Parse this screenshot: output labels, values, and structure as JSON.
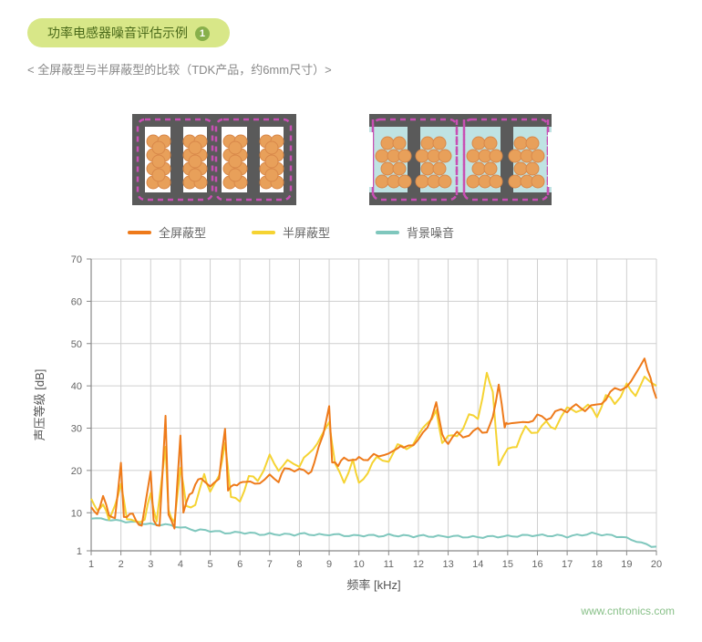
{
  "header": {
    "title_text": "功率电感器噪音评估示例",
    "badge_number": "1",
    "subtitle": "< 全屏蔽型与半屏蔽型的比较（TDK产品，约6mm尺寸）>",
    "title_bg": "#d8e788",
    "title_color": "#4a6a1a",
    "badge_bg": "#88b04b"
  },
  "diagrams": {
    "core_color": "#5a5a5a",
    "outline_color": "#c84fb4",
    "coil_color": "#e8a05a",
    "coil_stroke": "#d8884a",
    "fill_half": "#bfe3e3"
  },
  "legend": {
    "items": [
      {
        "label": "全屏蔽型",
        "color": "#ee7a1a"
      },
      {
        "label": "半屏蔽型",
        "color": "#f5d332"
      },
      {
        "label": "背景噪音",
        "color": "#7fc7bd"
      }
    ]
  },
  "chart": {
    "type": "line",
    "xlabel": "频率 [kHz]",
    "ylabel": "声压等级 [dB]",
    "label_fontsize": 13,
    "tick_fontsize": 11,
    "xlim": [
      1,
      20
    ],
    "ylim": [
      1,
      70
    ],
    "xticks": [
      1,
      2,
      3,
      4,
      5,
      6,
      7,
      8,
      9,
      10,
      11,
      12,
      13,
      14,
      15,
      16,
      17,
      18,
      19,
      20
    ],
    "yticks": [
      1,
      10,
      20,
      30,
      40,
      50,
      60,
      70
    ],
    "grid_color": "#cfcfcf",
    "axis_color": "#888888",
    "background": "#ffffff",
    "line_width": 2,
    "noise_amplitude": 0.8,
    "series_full": {
      "color": "#ee7a1a",
      "points": [
        [
          1,
          12
        ],
        [
          1.2,
          9
        ],
        [
          1.4,
          14
        ],
        [
          1.6,
          10
        ],
        [
          1.8,
          8
        ],
        [
          2,
          22
        ],
        [
          2.1,
          9
        ],
        [
          2.3,
          10
        ],
        [
          2.5,
          8
        ],
        [
          2.7,
          7
        ],
        [
          3,
          19
        ],
        [
          3.1,
          8
        ],
        [
          3.3,
          7
        ],
        [
          3.5,
          33
        ],
        [
          3.6,
          9
        ],
        [
          3.8,
          7
        ],
        [
          4,
          28
        ],
        [
          4.1,
          10
        ],
        [
          4.3,
          14
        ],
        [
          4.5,
          17
        ],
        [
          4.7,
          18
        ],
        [
          5,
          17
        ],
        [
          5.3,
          18
        ],
        [
          5.5,
          30
        ],
        [
          5.6,
          16
        ],
        [
          5.8,
          16
        ],
        [
          6,
          17
        ],
        [
          6.2,
          18
        ],
        [
          6.5,
          17
        ],
        [
          7,
          19
        ],
        [
          7.3,
          18
        ],
        [
          7.5,
          20
        ],
        [
          8,
          20
        ],
        [
          8.3,
          19
        ],
        [
          8.5,
          22
        ],
        [
          8.8,
          28
        ],
        [
          9,
          36
        ],
        [
          9.1,
          22
        ],
        [
          9.3,
          21
        ],
        [
          9.5,
          23
        ],
        [
          9.8,
          22
        ],
        [
          10,
          23
        ],
        [
          10.3,
          22
        ],
        [
          10.5,
          24
        ],
        [
          11,
          24
        ],
        [
          11.3,
          26
        ],
        [
          11.5,
          25
        ],
        [
          12,
          27
        ],
        [
          12.3,
          30
        ],
        [
          12.6,
          36
        ],
        [
          12.8,
          28
        ],
        [
          13,
          27
        ],
        [
          13.3,
          29
        ],
        [
          13.7,
          28
        ],
        [
          14,
          30
        ],
        [
          14.3,
          29
        ],
        [
          14.5,
          32
        ],
        [
          14.7,
          41
        ],
        [
          14.9,
          30
        ],
        [
          15,
          31
        ],
        [
          15.3,
          32
        ],
        [
          15.7,
          31
        ],
        [
          16,
          33
        ],
        [
          16.3,
          32
        ],
        [
          16.6,
          34
        ],
        [
          17,
          34
        ],
        [
          17.3,
          35
        ],
        [
          17.6,
          34
        ],
        [
          18,
          36
        ],
        [
          18.3,
          37
        ],
        [
          18.6,
          40
        ],
        [
          19,
          39
        ],
        [
          19.3,
          43
        ],
        [
          19.6,
          46
        ],
        [
          19.8,
          42
        ],
        [
          20,
          37
        ]
      ]
    },
    "series_half": {
      "color": "#f5d332",
      "points": [
        [
          1,
          14
        ],
        [
          1.2,
          10
        ],
        [
          1.4,
          12
        ],
        [
          1.6,
          9
        ],
        [
          1.8,
          11
        ],
        [
          2,
          17
        ],
        [
          2.2,
          9
        ],
        [
          2.5,
          8
        ],
        [
          2.8,
          9
        ],
        [
          3,
          14
        ],
        [
          3.2,
          8
        ],
        [
          3.5,
          25
        ],
        [
          3.6,
          10
        ],
        [
          3.8,
          8
        ],
        [
          4,
          21
        ],
        [
          4.2,
          11
        ],
        [
          4.5,
          12
        ],
        [
          4.8,
          19
        ],
        [
          5,
          15
        ],
        [
          5.3,
          18
        ],
        [
          5.5,
          27
        ],
        [
          5.7,
          14
        ],
        [
          6,
          13
        ],
        [
          6.3,
          19
        ],
        [
          6.6,
          18
        ],
        [
          7,
          23
        ],
        [
          7.3,
          20
        ],
        [
          7.6,
          22
        ],
        [
          8,
          21
        ],
        [
          8.3,
          24
        ],
        [
          8.6,
          26
        ],
        [
          9,
          32
        ],
        [
          9.2,
          21
        ],
        [
          9.5,
          17
        ],
        [
          9.8,
          22
        ],
        [
          10,
          17
        ],
        [
          10.3,
          19
        ],
        [
          10.6,
          23
        ],
        [
          11,
          22
        ],
        [
          11.3,
          27
        ],
        [
          11.6,
          25
        ],
        [
          12,
          28
        ],
        [
          12.3,
          31
        ],
        [
          12.6,
          34
        ],
        [
          12.8,
          26
        ],
        [
          13,
          29
        ],
        [
          13.3,
          28
        ],
        [
          13.7,
          33
        ],
        [
          14,
          32
        ],
        [
          14.3,
          43
        ],
        [
          14.5,
          38
        ],
        [
          14.7,
          22
        ],
        [
          15,
          25
        ],
        [
          15.3,
          26
        ],
        [
          15.6,
          30
        ],
        [
          16,
          29
        ],
        [
          16.3,
          32
        ],
        [
          16.6,
          30
        ],
        [
          17,
          35
        ],
        [
          17.3,
          33
        ],
        [
          17.7,
          36
        ],
        [
          18,
          33
        ],
        [
          18.3,
          38
        ],
        [
          18.6,
          36
        ],
        [
          19,
          40
        ],
        [
          19.3,
          38
        ],
        [
          19.6,
          42
        ],
        [
          20,
          40
        ]
      ]
    },
    "series_bg": {
      "color": "#7fc7bd",
      "points": [
        [
          1,
          9
        ],
        [
          1.5,
          8.5
        ],
        [
          2,
          8
        ],
        [
          2.5,
          7.5
        ],
        [
          3,
          7
        ],
        [
          3.5,
          7
        ],
        [
          4,
          6.5
        ],
        [
          4.5,
          6
        ],
        [
          5,
          6
        ],
        [
          5.5,
          5.5
        ],
        [
          6,
          5.5
        ],
        [
          7,
          5
        ],
        [
          8,
          5
        ],
        [
          9,
          4.8
        ],
        [
          10,
          4.5
        ],
        [
          11,
          4.5
        ],
        [
          12,
          4.3
        ],
        [
          13,
          4.2
        ],
        [
          14,
          4
        ],
        [
          15,
          4.2
        ],
        [
          16,
          4.5
        ],
        [
          17,
          4.3
        ],
        [
          18,
          5
        ],
        [
          19,
          4
        ],
        [
          19.5,
          3
        ],
        [
          20,
          2
        ]
      ]
    }
  },
  "watermark": "www.cntronics.com"
}
